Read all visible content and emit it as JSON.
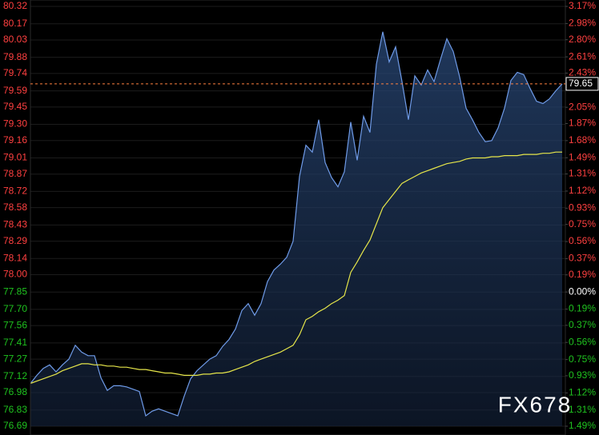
{
  "chart_data": {
    "type": "line",
    "categories": [
      null,
      null,
      null,
      null,
      null,
      null,
      null,
      null,
      null,
      null,
      null,
      null,
      null,
      null,
      null,
      null,
      null,
      null,
      null,
      null,
      null,
      null,
      null,
      null,
      null,
      null,
      null,
      null,
      null,
      null,
      null,
      null,
      null,
      null,
      null,
      null,
      null,
      null,
      null,
      null,
      null,
      null,
      null,
      null,
      null,
      null,
      null,
      null,
      null,
      null,
      null,
      null,
      null,
      null,
      null,
      null,
      null,
      null,
      null,
      null,
      null,
      null,
      null,
      null,
      null,
      null,
      null,
      null,
      null,
      null,
      null,
      null,
      null,
      null,
      null,
      null,
      null,
      null,
      null,
      null,
      null,
      null,
      null,
      null
    ],
    "series": [
      {
        "name": null,
        "color": "#6f9be8",
        "area": true,
        "values": [
          77.06,
          77.13,
          77.19,
          77.22,
          77.16,
          77.22,
          77.27,
          77.39,
          77.33,
          77.3,
          77.3,
          77.11,
          77.0,
          77.04,
          77.04,
          77.03,
          77.01,
          76.99,
          76.78,
          76.82,
          76.84,
          76.82,
          76.8,
          76.78,
          76.95,
          77.1,
          77.17,
          77.22,
          77.27,
          77.3,
          77.38,
          77.44,
          77.53,
          77.69,
          77.75,
          77.65,
          77.75,
          77.94,
          78.04,
          78.09,
          78.15,
          78.29,
          78.85,
          79.12,
          79.06,
          79.34,
          78.97,
          78.84,
          78.76,
          78.89,
          79.32,
          78.99,
          79.37,
          79.23,
          79.82,
          80.1,
          79.84,
          79.97,
          79.67,
          79.34,
          79.72,
          79.64,
          79.77,
          79.67,
          79.86,
          80.04,
          79.93,
          79.71,
          79.44,
          79.34,
          79.23,
          79.15,
          79.16,
          79.27,
          79.44,
          79.68,
          79.75,
          79.73,
          79.61,
          79.5,
          79.48,
          79.52,
          79.59,
          79.65
        ]
      },
      {
        "name": null,
        "color": "#e6e64a",
        "area": false,
        "values": [
          77.06,
          77.08,
          77.1,
          77.12,
          77.14,
          77.17,
          77.19,
          77.21,
          77.23,
          77.23,
          77.22,
          77.22,
          77.21,
          77.21,
          77.2,
          77.2,
          77.19,
          77.18,
          77.18,
          77.17,
          77.16,
          77.15,
          77.15,
          77.14,
          77.13,
          77.13,
          77.13,
          77.14,
          77.14,
          77.15,
          77.15,
          77.16,
          77.18,
          77.2,
          77.22,
          77.25,
          77.27,
          77.29,
          77.31,
          77.33,
          77.36,
          77.39,
          77.48,
          77.61,
          77.64,
          77.68,
          77.71,
          77.75,
          77.78,
          77.82,
          78.02,
          78.11,
          78.21,
          78.3,
          78.44,
          78.58,
          78.65,
          78.72,
          78.79,
          78.82,
          78.85,
          78.88,
          78.9,
          78.92,
          78.94,
          78.96,
          78.97,
          78.98,
          79.0,
          79.01,
          79.01,
          79.01,
          79.02,
          79.02,
          79.03,
          79.03,
          79.03,
          79.04,
          79.04,
          79.04,
          79.05,
          79.05,
          79.06,
          79.06
        ]
      }
    ],
    "ylim": [
      76.69,
      80.32
    ],
    "yticks": [
      80.32,
      80.17,
      80.03,
      79.88,
      79.74,
      79.59,
      79.45,
      {
        "value": 79.3,
        "label": "79.30"
      },
      79.16,
      79.01,
      78.87,
      78.72,
      78.58,
      78.43,
      78.29,
      78.14,
      {
        "value": 78,
        "label": "78.00"
      },
      77.85,
      {
        "value": 77.7,
        "label": "77.70"
      },
      77.56,
      77.41,
      77.27,
      77.12,
      76.98,
      76.83,
      76.69
    ],
    "y2lim": [
      -1.49,
      3.17
    ],
    "y2ticks": [
      {
        "value": 3.17,
        "label": "3.17%"
      },
      {
        "value": 2.98,
        "label": "2.98%"
      },
      {
        "value": 2.8,
        "label": "2.80%"
      },
      {
        "value": 2.61,
        "label": "2.61%"
      },
      {
        "value": 2.43,
        "label": "2.43%"
      },
      {
        "value": 2.05,
        "label": "2.05%"
      },
      {
        "value": 1.87,
        "label": "1.87%"
      },
      {
        "value": 1.68,
        "label": "1.68%"
      },
      {
        "value": 1.49,
        "label": "1.49%"
      },
      {
        "value": 1.31,
        "label": "1.31%"
      },
      {
        "value": 1.12,
        "label": "1.12%"
      },
      {
        "value": 0.93,
        "label": "0.93%"
      },
      {
        "value": 0.75,
        "label": "0.75%"
      },
      {
        "value": 0.56,
        "label": "0.56%"
      },
      {
        "value": 0.37,
        "label": "0.37%"
      },
      {
        "value": 0.19,
        "label": "0.19%"
      },
      {
        "value": 0,
        "label": "0.00%"
      },
      {
        "value": -0.19,
        "label": "0.19%"
      },
      {
        "value": -0.37,
        "label": "0.37%"
      },
      {
        "value": -0.56,
        "label": "0.56%"
      },
      {
        "value": -0.75,
        "label": "0.75%"
      },
      {
        "value": -0.93,
        "label": "0.93%"
      },
      {
        "value": -1.12,
        "label": "1.12%"
      },
      {
        "value": -1.31,
        "label": "1.31%"
      },
      {
        "value": -1.49,
        "label": "1.49%"
      }
    ],
    "current_price": {
      "value": 79.65,
      "label": "79.65"
    },
    "up_color": "#ff4040",
    "down_color": "#1fc31f",
    "flat_color": "#ffffff",
    "grid": true,
    "watermark": "FX678"
  }
}
